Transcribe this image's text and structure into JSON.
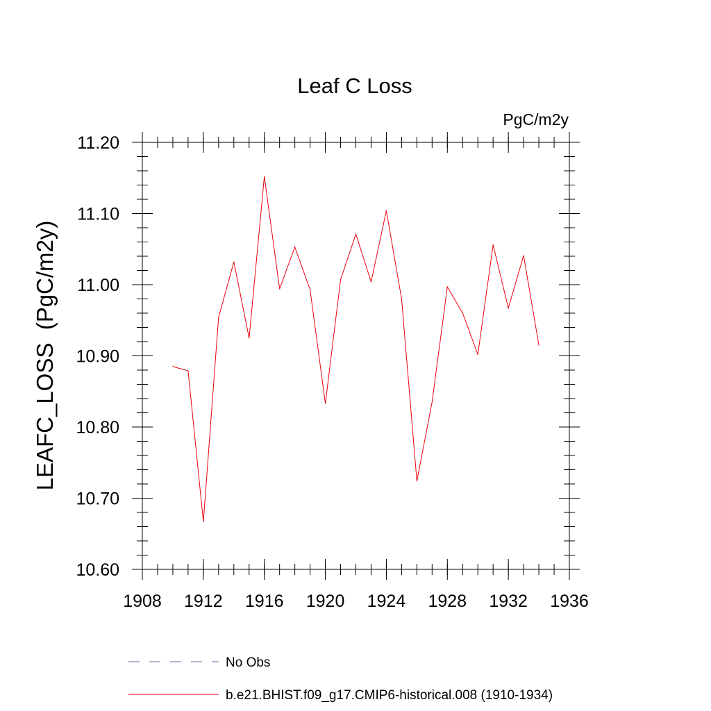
{
  "chart_data": {
    "type": "line",
    "title": "Leaf C Loss",
    "units_label": "PgC/m2y",
    "ylabel": "LEAFC_LOSS  (PgC/m2y)",
    "xlabel": "",
    "xlim": [
      1908,
      1936
    ],
    "ylim": [
      10.6,
      11.2
    ],
    "x_ticks": [
      1908,
      1912,
      1916,
      1920,
      1924,
      1928,
      1932,
      1936
    ],
    "x_tick_labels": [
      "1908",
      "1912",
      "1916",
      "1920",
      "1924",
      "1928",
      "1932",
      "1936"
    ],
    "y_ticks": [
      10.6,
      10.7,
      10.8,
      10.9,
      11.0,
      11.1,
      11.2
    ],
    "y_tick_labels": [
      "10.60",
      "10.70",
      "10.80",
      "10.90",
      "11.00",
      "11.10",
      "11.20"
    ],
    "x_minor_step": 1,
    "y_minor_step": 0.02,
    "grid": false,
    "legend_position": "bottom",
    "series": [
      {
        "name": "b.e21.BHIST.f09_g17.CMIP6-historical.008 (1910-1934)",
        "color": "#e8000b",
        "style": "solid",
        "x": [
          1910,
          1911,
          1912,
          1913,
          1914,
          1915,
          1916,
          1917,
          1918,
          1919,
          1920,
          1921,
          1922,
          1923,
          1924,
          1925,
          1926,
          1927,
          1928,
          1929,
          1930,
          1931,
          1932,
          1933,
          1934
        ],
        "y": [
          10.885,
          10.879,
          10.667,
          10.954,
          11.032,
          10.925,
          11.152,
          10.994,
          11.053,
          10.993,
          10.833,
          11.007,
          11.071,
          11.004,
          11.104,
          10.98,
          10.724,
          10.835,
          10.997,
          10.96,
          10.902,
          11.056,
          10.967,
          11.041,
          10.915
        ]
      }
    ],
    "legend": [
      {
        "label": "No Obs",
        "color": "#6666aa",
        "style": "dashed"
      },
      {
        "label": "b.e21.BHIST.f09_g17.CMIP6-historical.008 (1910-1934)",
        "color": "#e8000b",
        "style": "solid"
      }
    ]
  }
}
